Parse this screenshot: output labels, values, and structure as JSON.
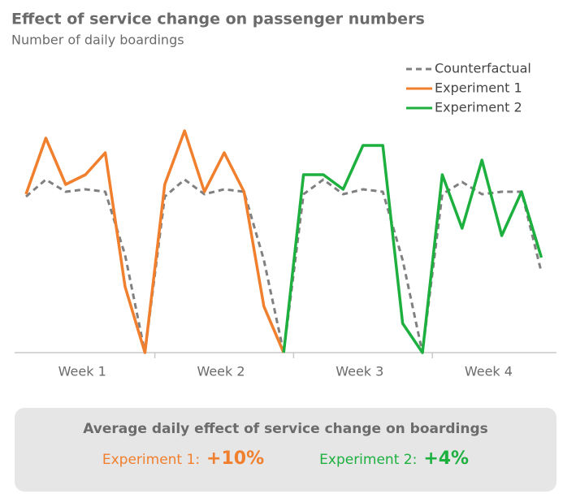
{
  "chart_data": {
    "type": "line",
    "title": "Effect of service change on passenger numbers",
    "subtitle": "Number of daily boardings",
    "categories": [
      null,
      null,
      null,
      null,
      null,
      null,
      null,
      null,
      null,
      null,
      null,
      null,
      null,
      null,
      null,
      null,
      null,
      null,
      null,
      null,
      null,
      null,
      null,
      null,
      null,
      null,
      null
    ],
    "groups": [
      "Week 1",
      "Week 2",
      "Week 3",
      "Week 4"
    ],
    "ylim": [
      0,
      100
    ],
    "legend": "top-right",
    "series": [
      {
        "name": "Counterfactual",
        "color": "#808080",
        "dashed": true,
        "values": [
          64,
          71,
          66,
          67,
          66,
          40,
          0,
          64,
          71,
          65,
          67,
          66,
          38,
          0,
          65,
          71,
          65,
          67,
          66,
          38,
          0,
          65,
          70,
          65,
          66,
          66,
          33
        ]
      },
      {
        "name": "Experiment 1",
        "color": "#f07f2e",
        "values": [
          65,
          88,
          69,
          73,
          82,
          27,
          0,
          69,
          91,
          66,
          82,
          66,
          19,
          0,
          null,
          null,
          null,
          null,
          null,
          null,
          null,
          null,
          null,
          null,
          null,
          null,
          null
        ]
      },
      {
        "name": "Experiment 2",
        "color": "#1db03f",
        "values": [
          null,
          null,
          null,
          null,
          null,
          null,
          null,
          null,
          null,
          null,
          null,
          null,
          null,
          0,
          73,
          73,
          67,
          85,
          85,
          12,
          0,
          73,
          51,
          79,
          48,
          66,
          39
        ]
      }
    ]
  },
  "summary": {
    "title": "Average daily effect of service change on boardings",
    "items": [
      {
        "label": "Experiment 1:",
        "value": "+10%",
        "color": "#f07f2e"
      },
      {
        "label": "Experiment 2:",
        "value": "+4%",
        "color": "#1db03f"
      }
    ]
  }
}
